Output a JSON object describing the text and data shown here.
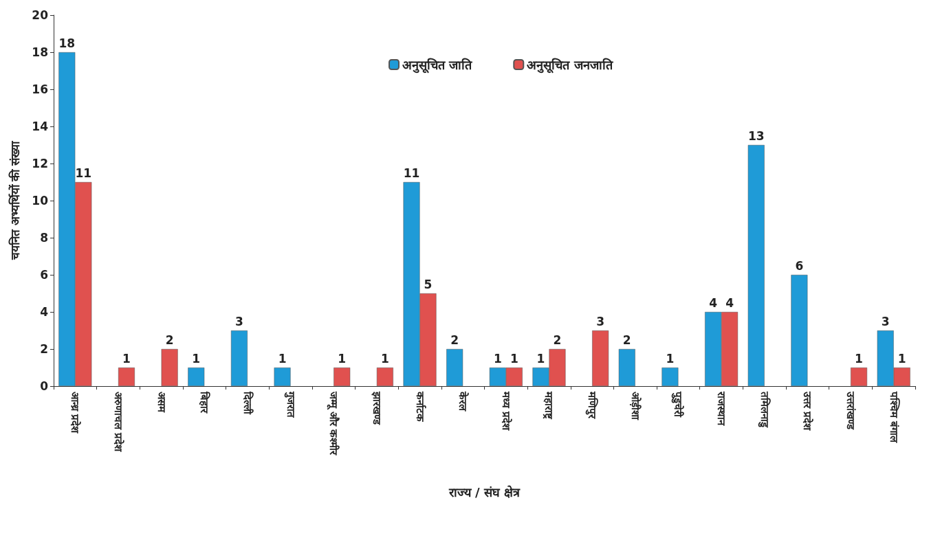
{
  "chart_data": {
    "type": "bar",
    "xlabel": "राज्य / संघ क्षेत्र",
    "ylabel": "चयनित अभ्यर्थियों की संख्या",
    "categories": [
      "आन्ध्र प्रदेश",
      "अरुणाचल प्रदेश",
      "असम",
      "बिहार",
      "दिल्ली",
      "गुजरात",
      "जम्मू और कश्मीर",
      "झारखण्ड",
      "कर्नाटक",
      "केरल",
      "मध्य प्रदेश",
      "महाराष्ट्र",
      "मणिपुर",
      "ओड़ीशा",
      "पुडुचेरी",
      "राजस्थान",
      "तमिलनाडु",
      "उत्तर प्रदेश",
      "उत्तरांखण्ड",
      "पश्चिम बंगाल"
    ],
    "series": [
      {
        "name": "अनुसूचित जाति",
        "color": "#1f9bd7",
        "values": [
          18,
          null,
          null,
          1,
          3,
          1,
          null,
          null,
          11,
          2,
          1,
          1,
          null,
          2,
          1,
          4,
          13,
          6,
          null,
          3
        ]
      },
      {
        "name": "अनुसूचित जनजाति",
        "color": "#e0514f",
        "values": [
          11,
          1,
          2,
          null,
          null,
          null,
          1,
          1,
          5,
          null,
          1,
          2,
          3,
          null,
          null,
          4,
          null,
          null,
          1,
          1
        ]
      }
    ],
    "ylim": [
      0,
      20
    ],
    "yticks": [
      0,
      2,
      4,
      6,
      8,
      10,
      12,
      14,
      16,
      18,
      20
    ],
    "grid": false,
    "legend": "top",
    "data_labels": true
  }
}
